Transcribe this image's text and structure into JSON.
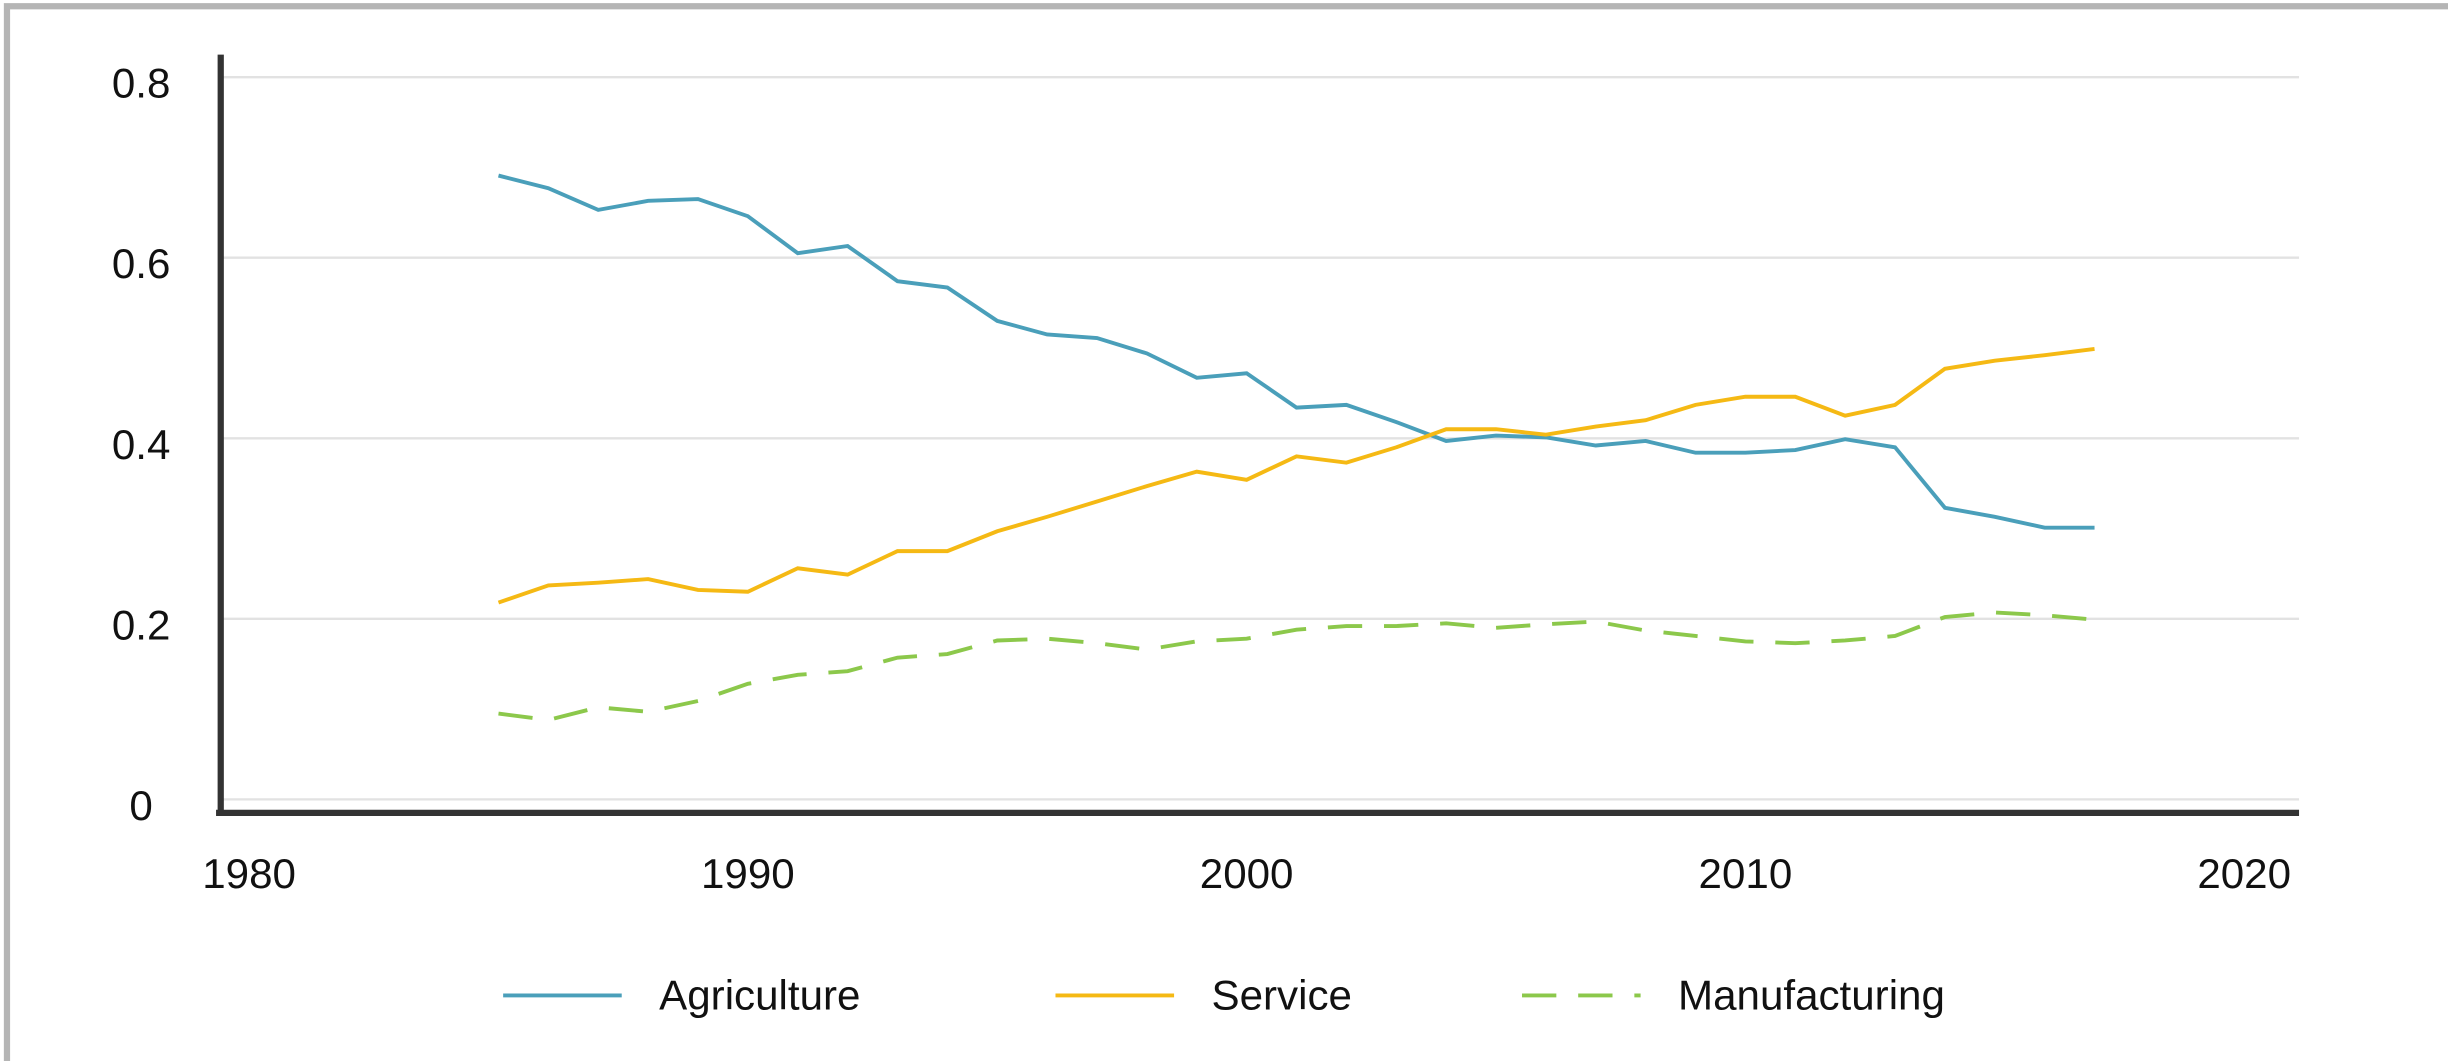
{
  "chart_data": {
    "type": "line",
    "x": [
      1985,
      1986,
      1987,
      1988,
      1989,
      1990,
      1991,
      1992,
      1993,
      1994,
      1995,
      1996,
      1997,
      1998,
      1999,
      2000,
      2001,
      2002,
      2003,
      2004,
      2005,
      2006,
      2007,
      2008,
      2009,
      2010,
      2011,
      2012,
      2013,
      2014,
      2015,
      2016,
      2017
    ],
    "series": [
      {
        "name": "Agriculture",
        "color": "#4a9fba",
        "dash": "solid",
        "values": [
          0.691,
          0.677,
          0.653,
          0.663,
          0.665,
          0.646,
          0.605,
          0.613,
          0.574,
          0.567,
          0.53,
          0.515,
          0.511,
          0.494,
          0.467,
          0.472,
          0.434,
          0.437,
          0.418,
          0.397,
          0.403,
          0.401,
          0.392,
          0.397,
          0.384,
          0.384,
          0.387,
          0.399,
          0.39,
          0.323,
          0.313,
          0.301,
          0.301
        ]
      },
      {
        "name": "Service",
        "color": "#f5b914",
        "dash": "solid",
        "values": [
          0.218,
          0.237,
          0.24,
          0.244,
          0.232,
          0.23,
          0.256,
          0.249,
          0.275,
          0.275,
          0.297,
          0.313,
          0.33,
          0.347,
          0.363,
          0.354,
          0.38,
          0.373,
          0.39,
          0.41,
          0.41,
          0.404,
          0.413,
          0.42,
          0.437,
          0.446,
          0.446,
          0.425,
          0.437,
          0.477,
          0.486,
          0.492,
          0.499
        ]
      },
      {
        "name": "Manufacturing",
        "color": "#8cc84b",
        "dash": "dashed",
        "values": [
          0.095,
          0.088,
          0.102,
          0.097,
          0.109,
          0.128,
          0.138,
          0.142,
          0.157,
          0.161,
          0.176,
          0.178,
          0.173,
          0.166,
          0.175,
          0.178,
          0.188,
          0.192,
          0.192,
          0.195,
          0.19,
          0.194,
          0.197,
          0.187,
          0.181,
          0.175,
          0.173,
          0.176,
          0.181,
          0.202,
          0.207,
          0.204,
          0.199
        ]
      }
    ],
    "xlim": [
      1979.4,
      2021.1
    ],
    "xticks": [
      1980,
      1990,
      2000,
      2010,
      2020
    ],
    "ylim": [
      -0.015,
      0.825
    ],
    "yticks": [
      0,
      0.2,
      0.4,
      0.6,
      0.8
    ],
    "grid": true,
    "legend": "bottom"
  }
}
